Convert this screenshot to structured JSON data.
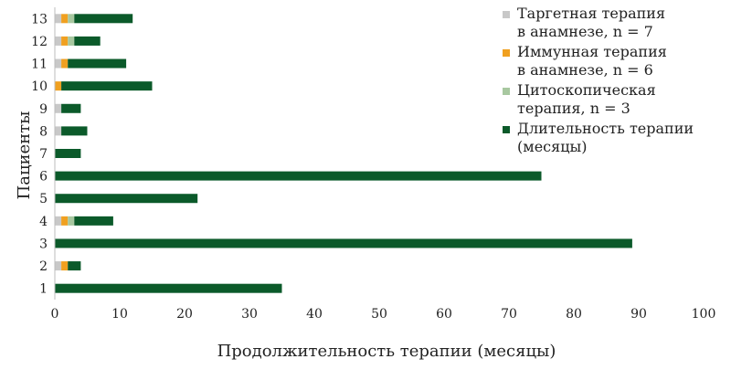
{
  "chart_data": {
    "type": "bar",
    "orientation": "horizontal",
    "stacked": true,
    "xlabel": "Продолжительность терапии (месяцы)",
    "ylabel": "Пациенты",
    "xlim": [
      0,
      100
    ],
    "xticks": [
      0,
      10,
      20,
      30,
      40,
      50,
      60,
      70,
      80,
      90,
      100
    ],
    "categories": [
      "1",
      "2",
      "3",
      "4",
      "5",
      "6",
      "7",
      "8",
      "9",
      "10",
      "11",
      "12",
      "13"
    ],
    "legend_position": "top-right",
    "grid": false,
    "series": [
      {
        "name": "Таргетная терапия в анамнезе, n = 7",
        "legend_lines": [
          "Таргетная терапия",
          "в анамнезе, n = 7"
        ],
        "color": "#c8c8c8",
        "values": [
          0,
          1,
          0,
          1,
          0,
          0,
          0,
          1,
          1,
          0,
          1,
          1,
          1
        ]
      },
      {
        "name": "Иммунная терапия в анамнезе, n = 6",
        "legend_lines": [
          "Иммунная терапия",
          "в анамнезе, n = 6"
        ],
        "color": "#f0a020",
        "values": [
          0,
          1,
          0,
          1,
          0,
          0,
          0,
          0,
          0,
          1,
          1,
          1,
          1
        ]
      },
      {
        "name": "Цитоскопическая терапия, n = 3",
        "legend_lines": [
          "Цитоскопическая",
          "терапия, n = 3"
        ],
        "color": "#a8c8a0",
        "values": [
          0,
          0,
          0,
          1,
          0,
          0,
          0,
          0,
          0,
          0,
          0,
          1,
          1
        ]
      },
      {
        "name": "Длительность терапии (месяцы)",
        "legend_lines": [
          "Длительность терапии",
          "(месяцы)"
        ],
        "color": "#0b5a2a",
        "values": [
          35,
          2,
          89,
          6,
          22,
          75,
          4,
          4,
          3,
          14,
          9,
          4,
          9
        ]
      }
    ]
  }
}
